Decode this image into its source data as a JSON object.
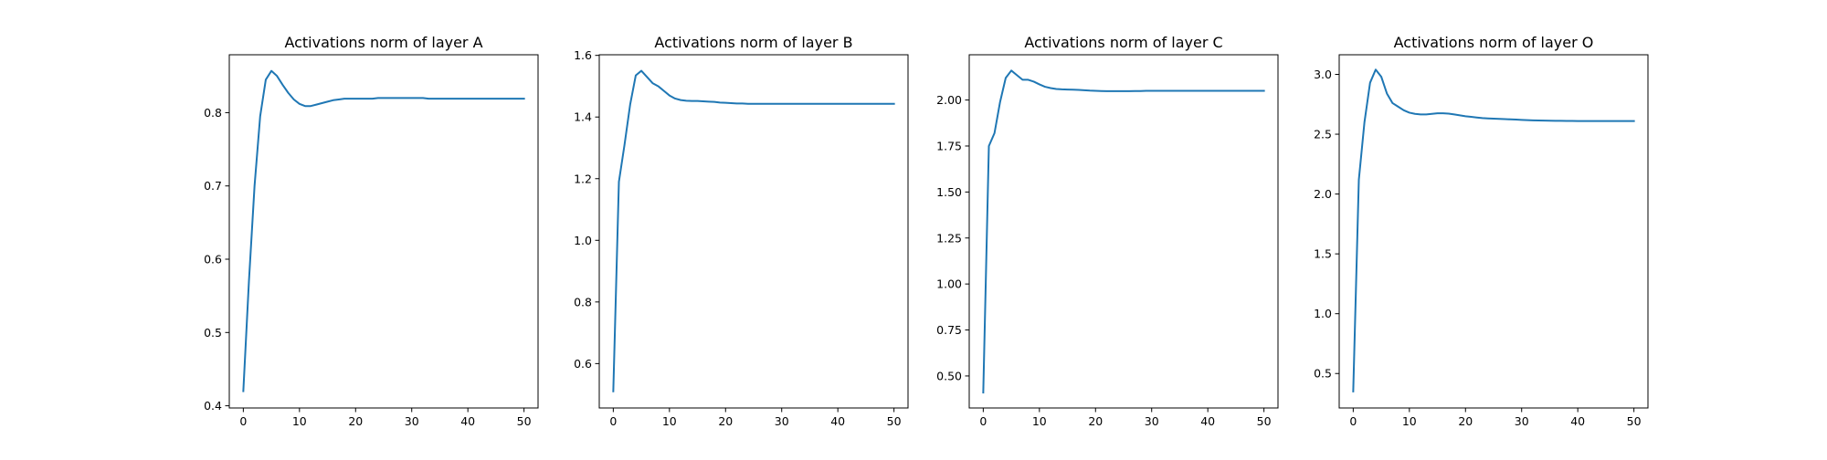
{
  "chart_data": [
    {
      "type": "line",
      "title": "Activations norm of layer A",
      "xlabel": "",
      "ylabel": "",
      "xlim": [
        -2.5,
        52.5
      ],
      "ylim": [
        0.397,
        0.879
      ],
      "xticks": [
        0,
        10,
        20,
        30,
        40,
        50
      ],
      "yticks": [
        0.4,
        0.5,
        0.6,
        0.7,
        0.8
      ],
      "ytick_labels": [
        "0.4",
        "0.5",
        "0.6",
        "0.7",
        "0.8"
      ],
      "grid": false,
      "color": "#1f77b4",
      "x": [
        0,
        1,
        2,
        3,
        4,
        5,
        6,
        7,
        8,
        9,
        10,
        11,
        12,
        13,
        14,
        15,
        16,
        17,
        18,
        19,
        20,
        21,
        22,
        23,
        24,
        25,
        26,
        27,
        28,
        29,
        30,
        31,
        32,
        33,
        34,
        35,
        36,
        37,
        38,
        39,
        40,
        41,
        42,
        43,
        44,
        45,
        46,
        47,
        48,
        49,
        50
      ],
      "values": [
        0.42,
        0.57,
        0.7,
        0.795,
        0.845,
        0.857,
        0.85,
        0.838,
        0.827,
        0.818,
        0.812,
        0.809,
        0.809,
        0.811,
        0.813,
        0.815,
        0.817,
        0.818,
        0.819,
        0.819,
        0.819,
        0.819,
        0.819,
        0.819,
        0.82,
        0.82,
        0.82,
        0.82,
        0.82,
        0.82,
        0.82,
        0.82,
        0.82,
        0.819,
        0.819,
        0.819,
        0.819,
        0.819,
        0.819,
        0.819,
        0.819,
        0.819,
        0.819,
        0.819,
        0.819,
        0.819,
        0.819,
        0.819,
        0.819,
        0.819,
        0.819
      ]
    },
    {
      "type": "line",
      "title": "Activations norm of layer B",
      "xlabel": "",
      "ylabel": "",
      "xlim": [
        -2.5,
        52.5
      ],
      "ylim": [
        0.456,
        1.602
      ],
      "xticks": [
        0,
        10,
        20,
        30,
        40,
        50
      ],
      "yticks": [
        0.6,
        0.8,
        1.0,
        1.2,
        1.4,
        1.6
      ],
      "ytick_labels": [
        "0.6",
        "0.8",
        "1.0",
        "1.2",
        "1.4",
        "1.6"
      ],
      "grid": false,
      "color": "#1f77b4",
      "x": [
        0,
        1,
        2,
        3,
        4,
        5,
        6,
        7,
        8,
        9,
        10,
        11,
        12,
        13,
        14,
        15,
        16,
        17,
        18,
        19,
        20,
        21,
        22,
        23,
        24,
        25,
        26,
        27,
        28,
        29,
        30,
        31,
        32,
        33,
        34,
        35,
        36,
        37,
        38,
        39,
        40,
        41,
        42,
        43,
        44,
        45,
        46,
        47,
        48,
        49,
        50
      ],
      "values": [
        0.51,
        1.19,
        1.31,
        1.44,
        1.535,
        1.55,
        1.53,
        1.51,
        1.5,
        1.485,
        1.47,
        1.46,
        1.455,
        1.453,
        1.452,
        1.452,
        1.451,
        1.45,
        1.449,
        1.447,
        1.446,
        1.445,
        1.444,
        1.444,
        1.443,
        1.443,
        1.443,
        1.443,
        1.443,
        1.443,
        1.443,
        1.443,
        1.443,
        1.443,
        1.443,
        1.443,
        1.443,
        1.443,
        1.443,
        1.443,
        1.443,
        1.443,
        1.443,
        1.443,
        1.443,
        1.443,
        1.443,
        1.443,
        1.443,
        1.443,
        1.443
      ]
    },
    {
      "type": "line",
      "title": "Activations norm of layer C",
      "xlabel": "",
      "ylabel": "",
      "xlim": [
        -2.5,
        52.5
      ],
      "ylim": [
        0.326,
        2.246
      ],
      "xticks": [
        0,
        10,
        20,
        30,
        40,
        50
      ],
      "yticks": [
        0.5,
        0.75,
        1.0,
        1.25,
        1.5,
        1.75,
        2.0
      ],
      "ytick_labels": [
        "0.50",
        "0.75",
        "1.00",
        "1.25",
        "1.50",
        "1.75",
        "2.00"
      ],
      "grid": false,
      "color": "#1f77b4",
      "x": [
        0,
        1,
        2,
        3,
        4,
        5,
        6,
        7,
        8,
        9,
        10,
        11,
        12,
        13,
        14,
        15,
        16,
        17,
        18,
        19,
        20,
        21,
        22,
        23,
        24,
        25,
        26,
        27,
        28,
        29,
        30,
        31,
        32,
        33,
        34,
        35,
        36,
        37,
        38,
        39,
        40,
        41,
        42,
        43,
        44,
        45,
        46,
        47,
        48,
        49,
        50
      ],
      "values": [
        0.41,
        1.75,
        1.82,
        1.99,
        2.12,
        2.16,
        2.135,
        2.11,
        2.11,
        2.1,
        2.085,
        2.072,
        2.065,
        2.06,
        2.058,
        2.057,
        2.056,
        2.055,
        2.053,
        2.051,
        2.05,
        2.049,
        2.048,
        2.048,
        2.048,
        2.048,
        2.048,
        2.049,
        2.049,
        2.05,
        2.05,
        2.05,
        2.05,
        2.05,
        2.05,
        2.05,
        2.05,
        2.05,
        2.05,
        2.05,
        2.05,
        2.05,
        2.05,
        2.05,
        2.05,
        2.05,
        2.05,
        2.05,
        2.05,
        2.05,
        2.05
      ]
    },
    {
      "type": "line",
      "title": "Activations norm of layer O",
      "xlabel": "",
      "ylabel": "",
      "xlim": [
        -2.5,
        52.5
      ],
      "ylim": [
        0.212,
        3.164
      ],
      "xticks": [
        0,
        10,
        20,
        30,
        40,
        50
      ],
      "yticks": [
        0.5,
        1.0,
        1.5,
        2.0,
        2.5,
        3.0
      ],
      "ytick_labels": [
        "0.5",
        "1.0",
        "1.5",
        "2.0",
        "2.5",
        "3.0"
      ],
      "grid": false,
      "color": "#1f77b4",
      "x": [
        0,
        1,
        2,
        3,
        4,
        5,
        6,
        7,
        8,
        9,
        10,
        11,
        12,
        13,
        14,
        15,
        16,
        17,
        18,
        19,
        20,
        21,
        22,
        23,
        24,
        25,
        26,
        27,
        28,
        29,
        30,
        31,
        32,
        33,
        34,
        35,
        36,
        37,
        38,
        39,
        40,
        41,
        42,
        43,
        44,
        45,
        46,
        47,
        48,
        49,
        50
      ],
      "values": [
        0.35,
        2.12,
        2.6,
        2.93,
        3.04,
        2.98,
        2.84,
        2.76,
        2.73,
        2.7,
        2.68,
        2.67,
        2.665,
        2.665,
        2.67,
        2.675,
        2.675,
        2.672,
        2.665,
        2.658,
        2.65,
        2.645,
        2.64,
        2.635,
        2.632,
        2.63,
        2.628,
        2.626,
        2.624,
        2.622,
        2.62,
        2.618,
        2.616,
        2.615,
        2.614,
        2.613,
        2.612,
        2.612,
        2.611,
        2.611,
        2.61,
        2.61,
        2.61,
        2.61,
        2.61,
        2.61,
        2.61,
        2.61,
        2.61,
        2.61,
        2.61
      ]
    }
  ]
}
